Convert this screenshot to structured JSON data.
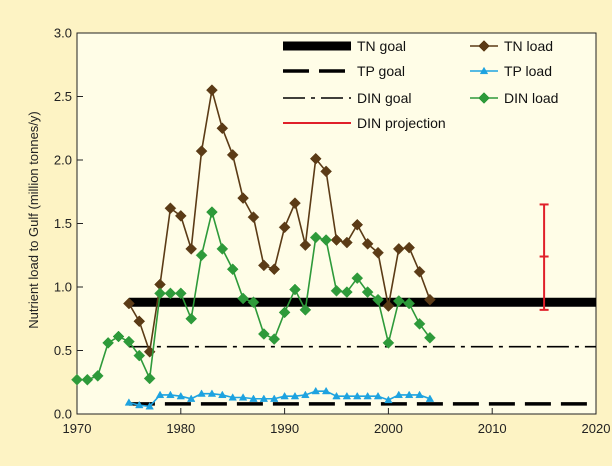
{
  "chart_data": {
    "type": "line",
    "title": "",
    "xlabel": "",
    "ylabel": "Nutrient load to Gulf (million tonnes/y)",
    "xlim": [
      1970,
      2020
    ],
    "ylim": [
      0,
      3.0
    ],
    "x_ticks": [
      "1970",
      "1980",
      "1990",
      "2000",
      "2010",
      "2020"
    ],
    "y_ticks": [
      "0.0",
      "0.5",
      "1.0",
      "1.5",
      "2.0",
      "2.5",
      "3.0"
    ],
    "grid": false,
    "legend_position": "top-right",
    "reference_lines": [
      {
        "name": "TN goal",
        "y": 0.88,
        "x_start": 1975,
        "x_end": 2020,
        "style": "thick-solid",
        "color": "#000000"
      },
      {
        "name": "TP goal",
        "y": 0.08,
        "x_start": 1975,
        "x_end": 2020,
        "style": "long-dash",
        "color": "#000000"
      },
      {
        "name": "DIN goal",
        "y": 0.53,
        "x_start": 1975,
        "x_end": 2020,
        "style": "dash-dot",
        "color": "#000000"
      }
    ],
    "series": [
      {
        "name": "TN load",
        "color": "#5b3b16",
        "marker": "diamond",
        "x": [
          1975,
          1976,
          1977,
          1978,
          1979,
          1980,
          1981,
          1982,
          1983,
          1984,
          1985,
          1986,
          1987,
          1988,
          1989,
          1990,
          1991,
          1992,
          1993,
          1994,
          1995,
          1996,
          1997,
          1998,
          1999,
          2000,
          2001,
          2002,
          2003,
          2004
        ],
        "values": [
          0.87,
          0.73,
          0.49,
          1.02,
          1.62,
          1.56,
          1.3,
          2.07,
          2.55,
          2.25,
          2.04,
          1.7,
          1.55,
          1.17,
          1.14,
          1.47,
          1.66,
          1.33,
          2.01,
          1.91,
          1.37,
          1.35,
          1.49,
          1.34,
          1.27,
          0.85,
          1.3,
          1.31,
          1.12,
          0.9
        ]
      },
      {
        "name": "TP load",
        "color": "#1ea3e0",
        "marker": "triangle",
        "x": [
          1975,
          1976,
          1977,
          1978,
          1979,
          1980,
          1981,
          1982,
          1983,
          1984,
          1985,
          1986,
          1987,
          1988,
          1989,
          1990,
          1991,
          1992,
          1993,
          1994,
          1995,
          1996,
          1997,
          1998,
          1999,
          2000,
          2001,
          2002,
          2003,
          2004
        ],
        "values": [
          0.09,
          0.07,
          0.06,
          0.15,
          0.15,
          0.14,
          0.12,
          0.16,
          0.16,
          0.15,
          0.13,
          0.13,
          0.12,
          0.12,
          0.12,
          0.14,
          0.14,
          0.15,
          0.18,
          0.18,
          0.14,
          0.14,
          0.14,
          0.14,
          0.14,
          0.11,
          0.15,
          0.15,
          0.15,
          0.12
        ]
      },
      {
        "name": "DIN load",
        "color": "#2e9a3a",
        "marker": "diamond",
        "x": [
          1970,
          1971,
          1972,
          1973,
          1974,
          1975,
          1976,
          1977,
          1978,
          1979,
          1980,
          1981,
          1982,
          1983,
          1984,
          1985,
          1986,
          1987,
          1988,
          1989,
          1990,
          1991,
          1992,
          1993,
          1994,
          1995,
          1996,
          1997,
          1998,
          1999,
          2000,
          2001,
          2002,
          2003,
          2004
        ],
        "values": [
          0.27,
          0.27,
          0.3,
          0.56,
          0.61,
          0.57,
          0.46,
          0.28,
          0.95,
          0.95,
          0.95,
          0.75,
          1.25,
          1.59,
          1.3,
          1.14,
          0.91,
          0.88,
          0.63,
          0.59,
          0.8,
          0.98,
          0.82,
          1.39,
          1.37,
          0.97,
          0.96,
          1.07,
          0.96,
          0.9,
          0.56,
          0.89,
          0.87,
          0.71,
          0.6
        ]
      }
    ],
    "projection": {
      "name": "DIN projection",
      "color": "#e0202a",
      "x": 2015,
      "low": 0.82,
      "mid": 1.24,
      "high": 1.65
    },
    "legend": [
      {
        "label": "TN goal",
        "kind": "thick-solid"
      },
      {
        "label": "TN load",
        "kind": "series",
        "series": 0
      },
      {
        "label": "TP goal",
        "kind": "long-dash"
      },
      {
        "label": "TP load",
        "kind": "series",
        "series": 1
      },
      {
        "label": "DIN goal",
        "kind": "dash-dot"
      },
      {
        "label": "DIN load",
        "kind": "series",
        "series": 2
      },
      {
        "label": "DIN projection",
        "kind": "projection"
      }
    ]
  }
}
